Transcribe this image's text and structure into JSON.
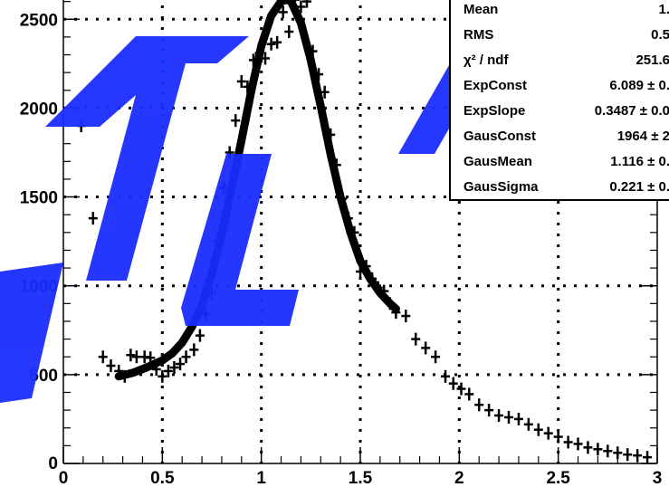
{
  "chart_data": {
    "type": "scatter",
    "title": "",
    "xlabel": "",
    "ylabel": "",
    "xlim": [
      0,
      3
    ],
    "ylim": [
      0,
      2700
    ],
    "grid": true,
    "x_ticks": [
      "0",
      "0.5",
      "1",
      "1.5",
      "2",
      "2.5",
      "3"
    ],
    "y_ticks": [
      "500",
      "1000",
      "1500",
      "2000",
      "2500"
    ],
    "series": [
      {
        "points": [
          [
            0.09,
            1900
          ],
          [
            0.15,
            1380
          ],
          [
            0.2,
            600
          ],
          [
            0.24,
            550
          ],
          [
            0.28,
            520
          ],
          [
            0.31,
            490
          ],
          [
            0.34,
            610
          ],
          [
            0.37,
            600
          ],
          [
            0.41,
            600
          ],
          [
            0.44,
            595
          ],
          [
            0.47,
            530
          ],
          [
            0.5,
            490
          ],
          [
            0.53,
            520
          ],
          [
            0.56,
            540
          ],
          [
            0.59,
            560
          ],
          [
            0.62,
            600
          ],
          [
            0.66,
            640
          ],
          [
            0.69,
            720
          ],
          [
            0.72,
            840
          ],
          [
            0.75,
            960
          ],
          [
            0.78,
            1250
          ],
          [
            0.81,
            1550
          ],
          [
            0.84,
            1750
          ],
          [
            0.87,
            1930
          ],
          [
            0.9,
            2150
          ],
          [
            0.93,
            2120
          ],
          [
            0.96,
            2270
          ],
          [
            0.99,
            2310
          ],
          [
            1.02,
            2280
          ],
          [
            1.05,
            2360
          ],
          [
            1.08,
            2370
          ],
          [
            1.11,
            2540
          ],
          [
            1.14,
            2430
          ],
          [
            1.17,
            2610
          ],
          [
            1.2,
            2570
          ],
          [
            1.23,
            2600
          ],
          [
            1.26,
            2320
          ],
          [
            1.29,
            2190
          ],
          [
            1.32,
            2090
          ],
          [
            1.35,
            1850
          ],
          [
            1.38,
            1680
          ],
          [
            1.41,
            1490
          ],
          [
            1.44,
            1380
          ],
          [
            1.47,
            1300
          ],
          [
            1.5,
            1080
          ],
          [
            1.53,
            1110
          ],
          [
            1.56,
            1040
          ],
          [
            1.59,
            990
          ],
          [
            1.62,
            970
          ],
          [
            1.65,
            900
          ],
          [
            1.68,
            850
          ],
          [
            1.73,
            830
          ],
          [
            1.78,
            700
          ],
          [
            1.83,
            650
          ],
          [
            1.88,
            600
          ],
          [
            1.93,
            490
          ],
          [
            1.97,
            450
          ],
          [
            2.01,
            420
          ],
          [
            2.05,
            390
          ],
          [
            2.1,
            330
          ],
          [
            2.15,
            300
          ],
          [
            2.2,
            270
          ],
          [
            2.25,
            260
          ],
          [
            2.3,
            250
          ],
          [
            2.35,
            220
          ],
          [
            2.4,
            190
          ],
          [
            2.45,
            170
          ],
          [
            2.5,
            150
          ],
          [
            2.55,
            120
          ],
          [
            2.6,
            110
          ],
          [
            2.65,
            90
          ],
          [
            2.7,
            80
          ],
          [
            2.75,
            70
          ],
          [
            2.8,
            60
          ],
          [
            2.85,
            50
          ],
          [
            2.9,
            45
          ],
          [
            2.95,
            35
          ]
        ]
      },
      {
        "type": "fit-line",
        "x": [
          0.28,
          0.35,
          0.42,
          0.5,
          0.55,
          0.6,
          0.65,
          0.7,
          0.75,
          0.8,
          0.85,
          0.9,
          0.95,
          1.0,
          1.05,
          1.1,
          1.13,
          1.15,
          1.2,
          1.25,
          1.3,
          1.35,
          1.4,
          1.45,
          1.5,
          1.55,
          1.6,
          1.65,
          1.68
        ],
        "y": [
          490,
          510,
          540,
          580,
          620,
          680,
          770,
          890,
          1070,
          1290,
          1550,
          1820,
          2100,
          2350,
          2520,
          2600,
          2610,
          2600,
          2480,
          2270,
          2010,
          1740,
          1500,
          1300,
          1140,
          1040,
          960,
          900,
          870
        ]
      }
    ],
    "stats_box": [
      {
        "name": "Mean",
        "value": "1."
      },
      {
        "name": "RMS",
        "value": "0.5"
      },
      {
        "name": "χ² / ndf",
        "value": "251.6"
      },
      {
        "name": "ExpConst",
        "value": "6.089 ± 0."
      },
      {
        "name": "ExpSlope",
        "value": "0.3487 ± 0.0"
      },
      {
        "name": "GausConst",
        "value": "1964 ± 2"
      },
      {
        "name": "GausMean",
        "value": "1.116 ± 0."
      },
      {
        "name": "GausSigma",
        "value": "0.221 ± 0."
      }
    ]
  },
  "colors": {
    "data": "#000000",
    "fit": "#000000",
    "watermark": "#1a2cff"
  }
}
